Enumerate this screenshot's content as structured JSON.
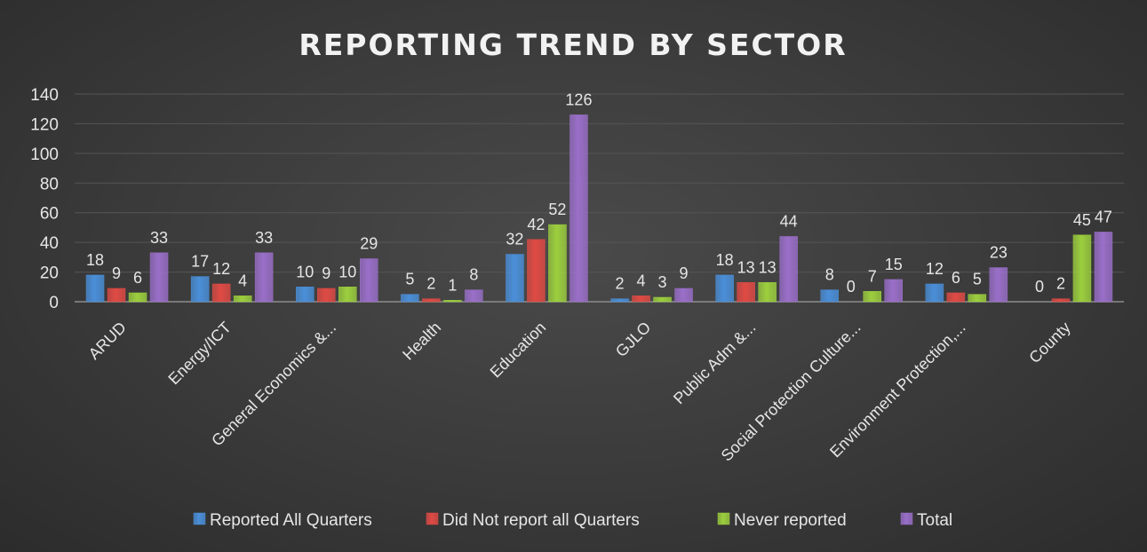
{
  "chart_data": {
    "type": "bar",
    "title": "REPORTING TREND BY SECTOR",
    "xlabel": "",
    "ylabel": "",
    "ylim": [
      0,
      140
    ],
    "yticks": [
      0,
      20,
      40,
      60,
      80,
      100,
      120,
      140
    ],
    "grid": true,
    "legend_position": "bottom",
    "categories": [
      "ARUD",
      "Energy/ICT",
      "General Economics &...",
      "Health",
      "Education",
      "GJLO",
      "Public Adm &...",
      "Social Protection Culture...",
      "Environment Protection,...",
      "County"
    ],
    "series": [
      {
        "name": "Reported All Quarters",
        "color": "#4a8fd9",
        "values": [
          18,
          17,
          10,
          5,
          32,
          2,
          18,
          8,
          12,
          0
        ]
      },
      {
        "name": "Did Not report all Quarters",
        "color": "#e04a44",
        "values": [
          9,
          12,
          9,
          2,
          42,
          4,
          13,
          0,
          6,
          2
        ]
      },
      {
        "name": "Never reported",
        "color": "#9ccf3e",
        "values": [
          6,
          4,
          10,
          1,
          52,
          3,
          13,
          7,
          5,
          45
        ]
      },
      {
        "name": "Total",
        "color": "#9a6fc9",
        "values": [
          33,
          33,
          29,
          8,
          126,
          9,
          44,
          15,
          23,
          47
        ]
      }
    ]
  }
}
